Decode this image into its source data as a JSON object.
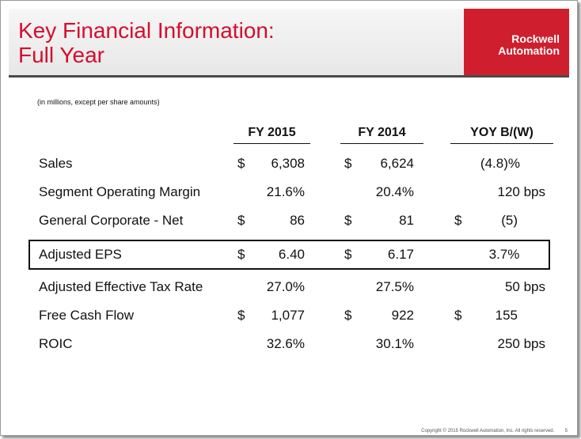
{
  "title": {
    "line1": "Key Financial Information:",
    "line2": "Full Year"
  },
  "logo": {
    "line1": "Rockwell",
    "line2": "Automation"
  },
  "note": "(in millions, except per share amounts)",
  "columns": [
    "FY 2015",
    "FY 2014",
    "YOY B/(W)"
  ],
  "rows": [
    {
      "label": "Sales",
      "d1": "$",
      "v1": "6,308",
      "d2": "$",
      "v2": "6,624",
      "d3": "",
      "v3": "(4.8)%"
    },
    {
      "label": "Segment Operating Margin",
      "d1": "",
      "v1": "21.6%",
      "d2": "",
      "v2": "20.4%",
      "d3": "",
      "v3": "120 bps"
    },
    {
      "label": "General Corporate - Net",
      "d1": "$",
      "v1": "86",
      "d2": "$",
      "v2": "81",
      "d3": "$",
      "v3": "(5)"
    },
    {
      "label": "Adjusted EPS",
      "d1": "$",
      "v1": "6.40",
      "d2": "$",
      "v2": "6.17",
      "d3": "",
      "v3": "3.7%"
    },
    {
      "label": "Adjusted Effective Tax Rate",
      "d1": "",
      "v1": "27.0%",
      "d2": "",
      "v2": "27.5%",
      "d3": "",
      "v3": "50 bps"
    },
    {
      "label": "Free Cash Flow",
      "d1": "$",
      "v1": "1,077",
      "d2": "$",
      "v2": "922",
      "d3": "$",
      "v3": "155"
    },
    {
      "label": "ROIC",
      "d1": "",
      "v1": "32.6%",
      "d2": "",
      "v2": "30.1%",
      "d3": "",
      "v3": "250 bps"
    }
  ],
  "footer": "Copyright © 2015 Rockwell Automation, Inc. All rights reserved.",
  "page_number": "5"
}
